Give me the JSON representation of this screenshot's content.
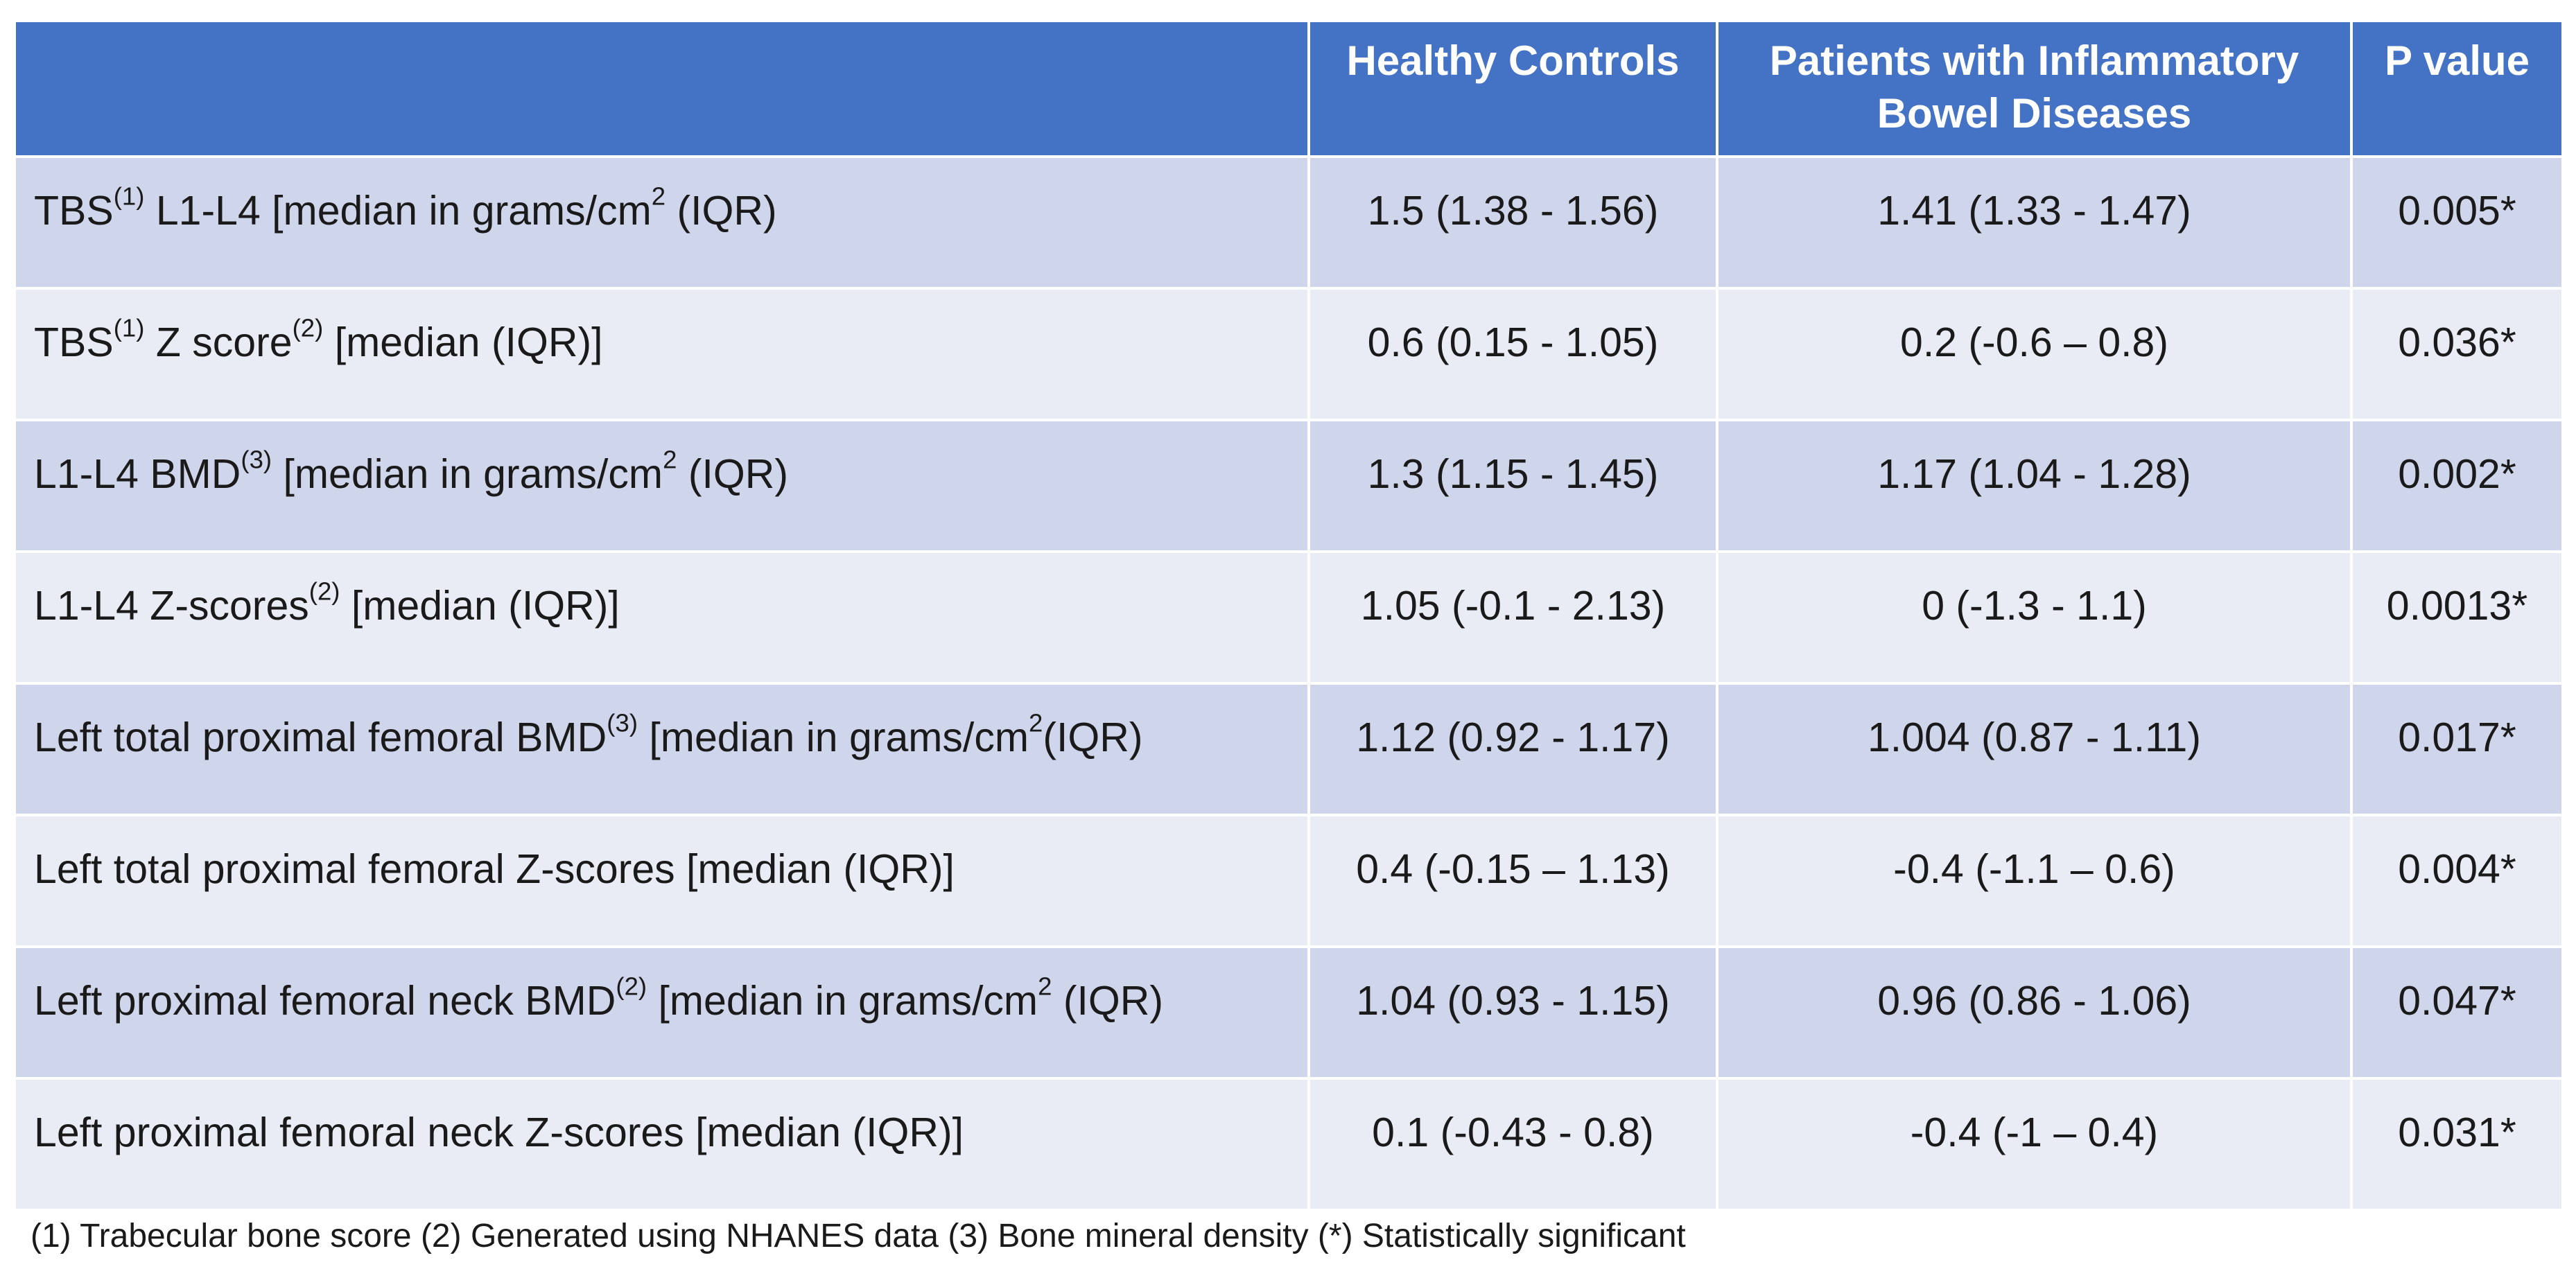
{
  "header": {
    "col_label": "",
    "col_controls": "Healthy Controls",
    "col_ibd_line1": "Patients with Inflammatory",
    "col_ibd_line2": "Bowel Diseases",
    "col_p": "P value"
  },
  "rows": [
    {
      "label_a": "TBS",
      "sup_a": "(1)",
      "label_b": " L1-L4 [median in grams/cm",
      "sup_b": "2",
      "label_c": " (IQR)",
      "controls": "1.5 (1.38 - 1.56)",
      "ibd": "1.41 (1.33 - 1.47)",
      "p": "0.005*"
    },
    {
      "label_a": "TBS",
      "sup_a": "(1)",
      "label_b": " Z score",
      "sup_b": "(2)",
      "label_c": " [median (IQR)]",
      "controls": "0.6 (0.15 - 1.05)",
      "ibd": "0.2 (-0.6 – 0.8)",
      "p": "0.036*"
    },
    {
      "label_a": "L1-L4 BMD",
      "sup_a": "(3)",
      "label_b": " [median in grams/cm",
      "sup_b": "2",
      "label_c": " (IQR)",
      "controls": "1.3 (1.15 - 1.45)",
      "ibd": "1.17 (1.04 - 1.28)",
      "p": "0.002*"
    },
    {
      "label_a": "L1-L4  Z-scores",
      "sup_a": "(2)",
      "label_b": " [median (IQR)]",
      "sup_b": "",
      "label_c": "",
      "controls": "1.05 (-0.1 - 2.13)",
      "ibd": "0 (-1.3 - 1.1)",
      "p": "0.0013*"
    },
    {
      "label_a": "Left total proximal femoral BMD",
      "sup_a": "(3)",
      "label_b": " [median in grams/cm",
      "sup_b": "2",
      "label_c": "(IQR)",
      "controls": "1.12 (0.92 - 1.17)",
      "ibd": "1.004 (0.87 - 1.11)",
      "p": "0.017*"
    },
    {
      "label_a": "Left total proximal femoral Z-scores [median (IQR)]",
      "sup_a": "",
      "label_b": "",
      "sup_b": "",
      "label_c": "",
      "controls": "0.4 (-0.15 – 1.13)",
      "ibd": "-0.4 (-1.1 – 0.6)",
      "p": "0.004*"
    },
    {
      "label_a": "Left proximal femoral neck BMD",
      "sup_a": "(2)",
      "label_b": " [median in grams/cm",
      "sup_b": "2",
      "label_c": " (IQR)",
      "controls": "1.04 (0.93 - 1.15)",
      "ibd": "0.96 (0.86 - 1.06)",
      "p": "0.047*"
    },
    {
      "label_a": "Left proximal femoral neck Z-scores [median (IQR)]",
      "sup_a": "",
      "label_b": "",
      "sup_b": "",
      "label_c": "",
      "controls": "0.1 (-0.43 - 0.8)",
      "ibd": "-0.4 (-1 – 0.4)",
      "p": "0.031*"
    }
  ],
  "footnote": "(1) Trabecular bone score (2) Generated using NHANES data (3) Bone mineral density (*) Statistically significant",
  "colors": {
    "header_bg": "#4472c4",
    "row_odd_bg": "#cfd5ea",
    "row_even_bg": "#e9ebf5"
  }
}
